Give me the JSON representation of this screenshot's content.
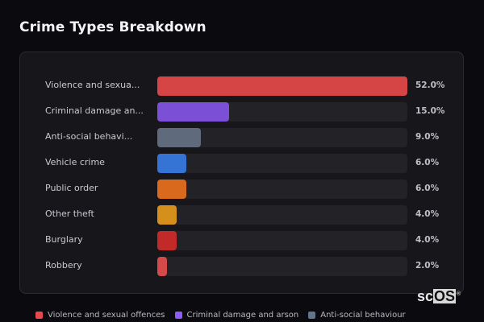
{
  "title": "Crime Types Breakdown",
  "chart_data": {
    "type": "bar",
    "orientation": "horizontal",
    "title": "Crime Types Breakdown",
    "categories": [
      "Violence and sexual offences",
      "Criminal damage and arson",
      "Anti-social behaviour",
      "Vehicle crime",
      "Public order",
      "Other theft",
      "Burglary",
      "Robbery"
    ],
    "display_labels": [
      "Violence and sexua...",
      "Criminal damage an...",
      "Anti-social behavi...",
      "Vehicle crime",
      "Public order",
      "Other theft",
      "Burglary",
      "Robbery"
    ],
    "values": [
      52.0,
      15.0,
      9.0,
      6.0,
      6.0,
      4.0,
      4.0,
      2.0
    ],
    "value_labels": [
      "52.0%",
      "15.0%",
      "9.0%",
      "6.0%",
      "6.0%",
      "4.0%",
      "4.0%",
      "2.0%"
    ],
    "colors": [
      "#d64545",
      "#7b4fd6",
      "#5f6b7c",
      "#3574d4",
      "#d9691c",
      "#d4901a",
      "#c22a2a",
      "#d44a4a"
    ],
    "xlim": [
      0,
      52
    ],
    "unit": "%",
    "grid": false,
    "legend_position": "bottom"
  },
  "rows": [
    {
      "label": "Violence and sexua...",
      "pct": "52.0%",
      "width": "100%",
      "color": "#d64545"
    },
    {
      "label": "Criminal damage an...",
      "pct": "15.0%",
      "width": "28.8%",
      "color": "#7b4fd6"
    },
    {
      "label": "Anti-social behavi...",
      "pct": "9.0%",
      "width": "17.3%",
      "color": "#5f6b7c"
    },
    {
      "label": "Vehicle crime",
      "pct": "6.0%",
      "width": "11.5%",
      "color": "#3574d4"
    },
    {
      "label": "Public order",
      "pct": "6.0%",
      "width": "11.5%",
      "color": "#d9691c"
    },
    {
      "label": "Other theft",
      "pct": "4.0%",
      "width": "7.7%",
      "color": "#d4901a"
    },
    {
      "label": "Burglary",
      "pct": "4.0%",
      "width": "7.7%",
      "color": "#c22a2a"
    },
    {
      "label": "Robbery",
      "pct": "2.0%",
      "width": "3.8%",
      "color": "#d44a4a"
    }
  ],
  "legend": [
    {
      "label": "Violence and sexual offences",
      "color": "#e5484d"
    },
    {
      "label": "Criminal damage and arson",
      "color": "#8b5cf6"
    },
    {
      "label": "Anti-social behaviour",
      "color": "#64748b"
    }
  ],
  "logo": {
    "prefix": "sc",
    "boxed": "OS",
    "mark": "®"
  }
}
